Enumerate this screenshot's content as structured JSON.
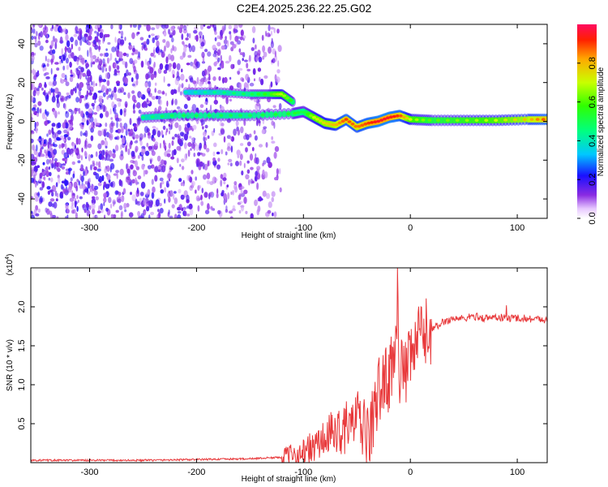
{
  "title": "C2E4.2025.236.22.25.G02",
  "chart_data": [
    {
      "type": "heatmap",
      "xlabel": "Height of straight line (km)",
      "ylabel": "Frequency (Hz)",
      "xlim": [
        -355,
        128
      ],
      "ylim": [
        -50,
        50
      ],
      "xticks": [
        -300,
        -200,
        -100,
        0,
        100
      ],
      "yticks": [
        -40,
        -20,
        0,
        20,
        40
      ],
      "colorbar": {
        "label": "Normalized spectral amplitude",
        "range": [
          0,
          1
        ],
        "ticks": [
          "0.0",
          "0.2",
          "0.4",
          "0.6",
          "0.8"
        ],
        "tick_values": [
          0.0,
          0.2,
          0.4,
          0.6,
          0.8
        ]
      },
      "noise_region_x": [
        -355,
        -120
      ],
      "ridge_main": {
        "x": [
          -250,
          -220,
          -180,
          -150,
          -110,
          -100,
          -90,
          -80,
          -70,
          -60,
          -50,
          -40,
          -30,
          -20,
          -10,
          0,
          20,
          50,
          80,
          110,
          128
        ],
        "freq": [
          2,
          3,
          3,
          3,
          4,
          5,
          2,
          -1,
          -2,
          1,
          -3,
          -1,
          0,
          2,
          3,
          1,
          0.5,
          0.5,
          0.5,
          1,
          1
        ],
        "amplitude": [
          0.45,
          0.5,
          0.5,
          0.5,
          0.55,
          0.5,
          0.7,
          0.75,
          0.8,
          0.9,
          0.85,
          0.9,
          0.95,
          0.95,
          0.9,
          0.7,
          0.6,
          0.65,
          0.7,
          0.8,
          0.9
        ]
      },
      "ridge_upper": {
        "x": [
          -210,
          -180,
          -150,
          -130,
          -120,
          -110
        ],
        "freq": [
          15,
          15,
          14,
          14,
          14,
          10
        ],
        "amplitude": [
          0.4,
          0.45,
          0.5,
          0.6,
          0.7,
          0.55
        ]
      }
    },
    {
      "type": "line",
      "xlabel": "Height of straight line (km)",
      "ylabel": "SNR (10 * v/v)",
      "y_multiplier": "(x10",
      "y_multiplier_exp": "4",
      "xlim": [
        -355,
        128
      ],
      "ylim": [
        0,
        2.5
      ],
      "xticks": [
        -300,
        -200,
        -100,
        0,
        100
      ],
      "yticks": [
        0.5,
        1.0,
        1.5,
        2.0
      ],
      "ytick_labels": [
        "0.5",
        "1.0",
        "1.5",
        "2.0"
      ],
      "series": [
        {
          "name": "SNR",
          "color": "#e8383a",
          "x": [
            -355,
            -300,
            -250,
            -200,
            -150,
            -120,
            -110,
            -100,
            -90,
            -80,
            -70,
            -60,
            -55,
            -50,
            -45,
            -40,
            -35,
            -30,
            -25,
            -20,
            -15,
            -12,
            -10,
            -5,
            0,
            5,
            10,
            20,
            30,
            40,
            50,
            60,
            70,
            80,
            90,
            100,
            110,
            120,
            128
          ],
          "y": [
            0.03,
            0.03,
            0.03,
            0.04,
            0.05,
            0.07,
            0.09,
            0.12,
            0.2,
            0.3,
            0.4,
            0.45,
            0.5,
            0.55,
            0.48,
            0.3,
            0.55,
            0.9,
            1.05,
            1.1,
            1.3,
            2.2,
            1.2,
            1.1,
            1.3,
            1.5,
            1.65,
            1.7,
            1.8,
            1.85,
            1.85,
            1.88,
            1.85,
            1.87,
            1.85,
            1.86,
            1.85,
            1.84,
            1.84
          ],
          "spikes": [
            {
              "x": -12,
              "y": 2.5
            },
            {
              "x": 10,
              "y": 2.0
            },
            {
              "x": 90,
              "y": 2.02
            }
          ]
        }
      ]
    }
  ],
  "colors": {
    "line": "#e8383a",
    "axis": "#000000",
    "noise": "#7a1ee6"
  }
}
